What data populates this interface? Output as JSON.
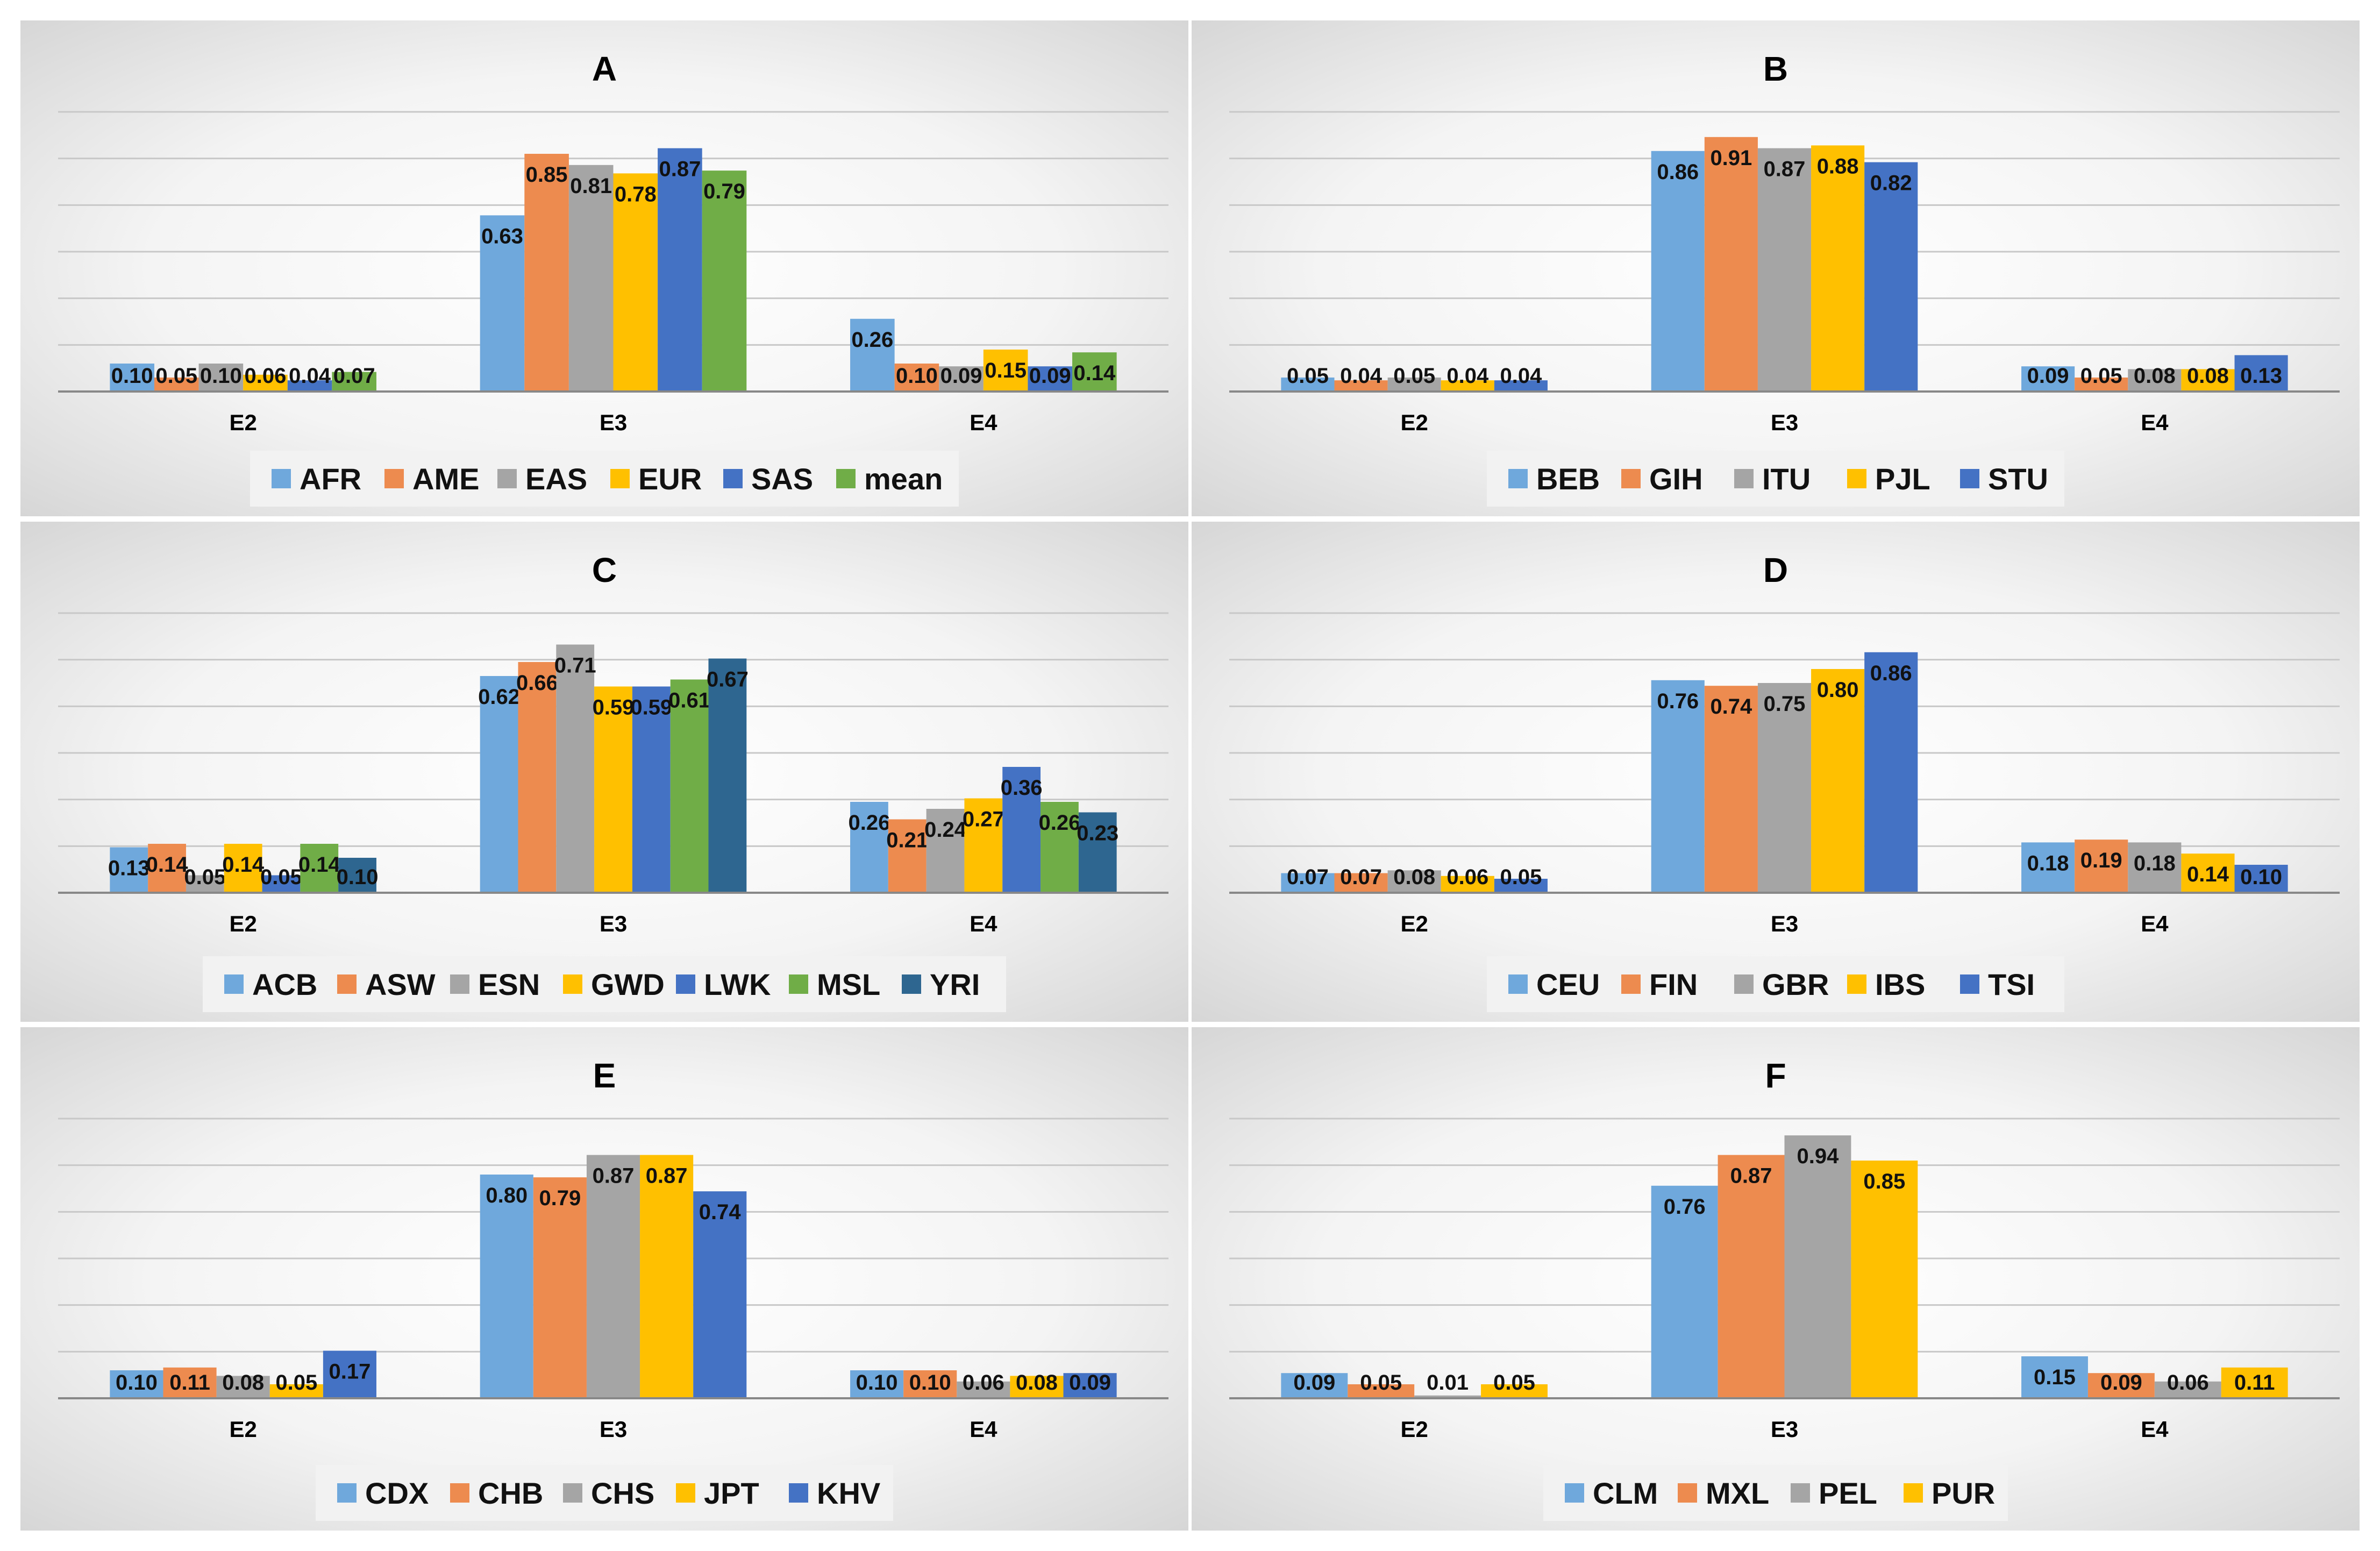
{
  "colors": {
    "blue": "#6fa8dc",
    "orange": "#ed8b4f",
    "gray": "#a5a5a5",
    "gold": "#ffc000",
    "darkblue": "#4472c4",
    "green": "#70ad47",
    "navy": "#2e6690",
    "grid": "#c8c8c8",
    "axis": "#888888"
  },
  "chart_data": [
    {
      "id": "A",
      "type": "bar",
      "title": "A",
      "categories": [
        "E2",
        "E3",
        "E4"
      ],
      "ylim": [
        0,
        1
      ],
      "grid": true,
      "legend": "bottom",
      "series": [
        {
          "name": "AFR",
          "color": "blue",
          "values": [
            0.1,
            0.63,
            0.26
          ]
        },
        {
          "name": "AME",
          "color": "orange",
          "values": [
            0.05,
            0.85,
            0.1
          ]
        },
        {
          "name": "EAS",
          "color": "gray",
          "values": [
            0.1,
            0.81,
            0.09
          ]
        },
        {
          "name": "EUR",
          "color": "gold",
          "values": [
            0.06,
            0.78,
            0.15
          ]
        },
        {
          "name": "SAS",
          "color": "darkblue",
          "values": [
            0.04,
            0.87,
            0.09
          ]
        },
        {
          "name": "mean",
          "color": "green",
          "values": [
            0.07,
            0.79,
            0.14
          ]
        }
      ]
    },
    {
      "id": "B",
      "type": "bar",
      "title": "B",
      "categories": [
        "E2",
        "E3",
        "E4"
      ],
      "ylim": [
        0,
        1
      ],
      "grid": true,
      "legend": "bottom",
      "series": [
        {
          "name": "BEB",
          "color": "blue",
          "values": [
            0.05,
            0.86,
            0.09
          ]
        },
        {
          "name": "GIH",
          "color": "orange",
          "values": [
            0.04,
            0.91,
            0.05
          ]
        },
        {
          "name": "ITU",
          "color": "gray",
          "values": [
            0.05,
            0.87,
            0.08
          ]
        },
        {
          "name": "PJL",
          "color": "gold",
          "values": [
            0.04,
            0.88,
            0.08
          ]
        },
        {
          "name": "STU",
          "color": "darkblue",
          "values": [
            0.04,
            0.82,
            0.13
          ]
        }
      ]
    },
    {
      "id": "C",
      "type": "bar",
      "title": "C",
      "categories": [
        "E2",
        "E3",
        "E4"
      ],
      "ylim": [
        0,
        0.8
      ],
      "grid": true,
      "legend": "bottom",
      "series": [
        {
          "name": "ACB",
          "color": "blue",
          "values": [
            0.13,
            0.62,
            0.26
          ]
        },
        {
          "name": "ASW",
          "color": "orange",
          "values": [
            0.14,
            0.66,
            0.21
          ]
        },
        {
          "name": "ESN",
          "color": "gray",
          "values": [
            0.05,
            0.71,
            0.24
          ]
        },
        {
          "name": "GWD",
          "color": "gold",
          "values": [
            0.14,
            0.59,
            0.27
          ]
        },
        {
          "name": "LWK",
          "color": "darkblue",
          "values": [
            0.05,
            0.59,
            0.36
          ]
        },
        {
          "name": "MSL",
          "color": "green",
          "values": [
            0.14,
            0.61,
            0.26
          ]
        },
        {
          "name": "YRI",
          "color": "navy",
          "values": [
            0.1,
            0.67,
            0.23
          ]
        }
      ]
    },
    {
      "id": "D",
      "type": "bar",
      "title": "D",
      "categories": [
        "E2",
        "E3",
        "E4"
      ],
      "ylim": [
        0,
        1
      ],
      "grid": true,
      "legend": "bottom",
      "series": [
        {
          "name": "CEU",
          "color": "blue",
          "values": [
            0.07,
            0.76,
            0.18
          ]
        },
        {
          "name": "FIN",
          "color": "orange",
          "values": [
            0.07,
            0.74,
            0.19
          ]
        },
        {
          "name": "GBR",
          "color": "gray",
          "values": [
            0.08,
            0.75,
            0.18
          ]
        },
        {
          "name": "IBS",
          "color": "gold",
          "values": [
            0.06,
            0.8,
            0.14
          ]
        },
        {
          "name": "TSI",
          "color": "darkblue",
          "values": [
            0.05,
            0.86,
            0.1
          ]
        }
      ]
    },
    {
      "id": "E",
      "type": "bar",
      "title": "E",
      "categories": [
        "E2",
        "E3",
        "E4"
      ],
      "ylim": [
        0,
        1
      ],
      "grid": true,
      "legend": "bottom",
      "series": [
        {
          "name": "CDX",
          "color": "blue",
          "values": [
            0.1,
            0.8,
            0.1
          ]
        },
        {
          "name": "CHB",
          "color": "orange",
          "values": [
            0.11,
            0.79,
            0.1
          ]
        },
        {
          "name": "CHS",
          "color": "gray",
          "values": [
            0.08,
            0.87,
            0.06
          ]
        },
        {
          "name": "JPT",
          "color": "gold",
          "values": [
            0.05,
            0.87,
            0.08
          ]
        },
        {
          "name": "KHV",
          "color": "darkblue",
          "values": [
            0.17,
            0.74,
            0.09
          ]
        }
      ]
    },
    {
      "id": "F",
      "type": "bar",
      "title": "F",
      "categories": [
        "E2",
        "E3",
        "E4"
      ],
      "ylim": [
        0,
        1
      ],
      "grid": true,
      "legend": "bottom",
      "series": [
        {
          "name": "CLM",
          "color": "blue",
          "values": [
            0.09,
            0.76,
            0.15
          ]
        },
        {
          "name": "MXL",
          "color": "orange",
          "values": [
            0.05,
            0.87,
            0.09
          ]
        },
        {
          "name": "PEL",
          "color": "gray",
          "values": [
            0.01,
            0.94,
            0.06
          ]
        },
        {
          "name": "PUR",
          "color": "gold",
          "values": [
            0.05,
            0.85,
            0.11
          ]
        }
      ]
    }
  ]
}
